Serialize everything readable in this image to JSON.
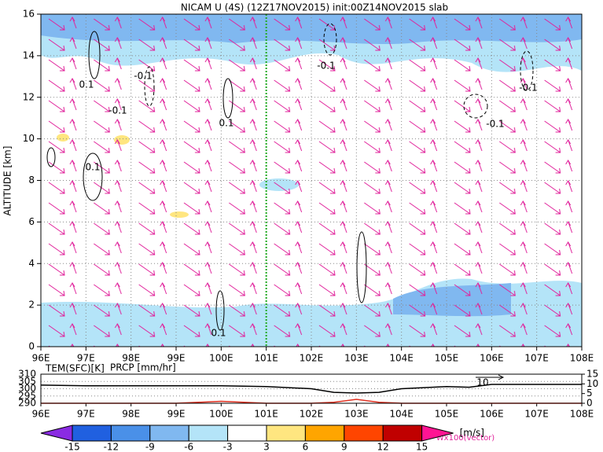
{
  "chart_data": [
    {
      "type": "contour",
      "title": "NICAM U (4S) (12Z17NOV2015) init:00Z14NOV2015 slab",
      "ylabel": "ALTITUDE [km]",
      "xlim": [
        96,
        108
      ],
      "xticks": [
        {
          "value": 96,
          "label": "96E"
        },
        {
          "value": 97,
          "label": "97E"
        },
        {
          "value": 98,
          "label": "98E"
        },
        {
          "value": 99,
          "label": "99E"
        },
        {
          "value": 100,
          "label": "100E"
        },
        {
          "value": 101,
          "label": "101E"
        },
        {
          "value": 102,
          "label": "102E"
        },
        {
          "value": 103,
          "label": "103E"
        },
        {
          "value": 104,
          "label": "104E"
        },
        {
          "value": 105,
          "label": "105E"
        },
        {
          "value": 106,
          "label": "106E"
        },
        {
          "value": 107,
          "label": "107E"
        },
        {
          "value": 108,
          "label": "108E"
        }
      ],
      "ylim": [
        0,
        16
      ],
      "yticks": [
        0,
        2,
        4,
        6,
        8,
        10,
        12,
        14,
        16
      ],
      "grid": true,
      "vline": 101,
      "vline_color": "#22aa22",
      "vector_color": "#e0209a",
      "annotations": [
        "0.1",
        "-0.1",
        "-0.1",
        "0.1",
        "0.1",
        "-0.1",
        "-0.1",
        "-0.1",
        "0.1"
      ],
      "colorbar": {
        "levels": [
          -15,
          -12,
          -9,
          -6,
          -3,
          3,
          6,
          9,
          12,
          15
        ],
        "colors": [
          "#8a2be2",
          "#2060e0",
          "#4a90e8",
          "#80b8f0",
          "#b4e4f8",
          "#ffffff",
          "#ffe680",
          "#ffa500",
          "#ff4500",
          "#c00000",
          "#ff1493"
        ],
        "unit": "[m/s]"
      },
      "vector_label": "Wx100(vector)"
    },
    {
      "type": "line",
      "xlim": [
        96,
        108
      ],
      "xticks": [
        {
          "value": 96,
          "label": "96E"
        },
        {
          "value": 97,
          "label": "97E"
        },
        {
          "value": 98,
          "label": "98E"
        },
        {
          "value": 99,
          "label": "99E"
        },
        {
          "value": 100,
          "label": "100E"
        },
        {
          "value": 101,
          "label": "101E"
        },
        {
          "value": 102,
          "label": "102E"
        },
        {
          "value": 103,
          "label": "103E"
        },
        {
          "value": 104,
          "label": "104E"
        },
        {
          "value": 105,
          "label": "105E"
        },
        {
          "value": 106,
          "label": "106E"
        },
        {
          "value": 107,
          "label": "107E"
        },
        {
          "value": 108,
          "label": "108E"
        }
      ],
      "ylim": [
        290,
        310
      ],
      "yticks": [
        290,
        295,
        300,
        305,
        310
      ],
      "y2lim": [
        0,
        15
      ],
      "y2ticks": [
        0,
        5,
        10,
        15
      ],
      "x": [
        96,
        97,
        98,
        99,
        100,
        101,
        102,
        102.5,
        103,
        103.5,
        104,
        105,
        105.5,
        106,
        107,
        108
      ],
      "series": [
        {
          "name": "TEM(SFC)[K]",
          "color": "#000000",
          "values": [
            302.5,
            302,
            302,
            302,
            302,
            301.5,
            300,
            297.5,
            297,
            297.5,
            300,
            301.5,
            301,
            303,
            303,
            303
          ]
        },
        {
          "name": "PRCP [mm/hr]",
          "color": "#e03020",
          "axis": "y2",
          "values": [
            0,
            0,
            0,
            0,
            1,
            0,
            0,
            0.5,
            2,
            0.5,
            0,
            0,
            0,
            0,
            0,
            0
          ]
        }
      ],
      "ref_vector_label": "10"
    }
  ]
}
